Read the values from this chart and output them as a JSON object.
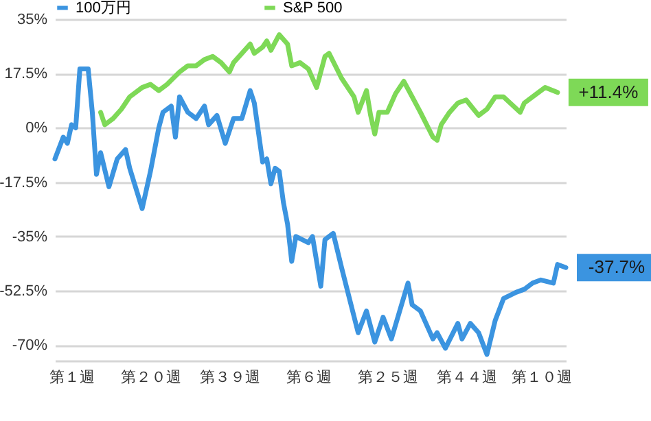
{
  "chart_data": {
    "type": "line",
    "categories": [
      null,
      null,
      null,
      null,
      "第１週",
      null,
      null,
      null,
      null,
      null,
      null,
      null,
      null,
      null,
      null,
      null,
      null,
      null,
      null,
      null,
      null,
      null,
      null,
      "第２０週",
      null,
      null,
      null,
      null,
      null,
      null,
      null,
      null,
      null,
      null,
      null,
      null,
      null,
      null,
      null,
      null,
      null,
      null,
      "第３９週",
      null,
      null,
      null,
      null,
      null,
      null,
      null,
      null,
      null,
      null,
      null,
      null,
      null,
      null,
      null,
      null,
      null,
      null,
      "第６週",
      null,
      null,
      null,
      null,
      null,
      null,
      null,
      null,
      null,
      null,
      null,
      null,
      null,
      null,
      null,
      null,
      null,
      null,
      "第２５週",
      null,
      null,
      null,
      null,
      null,
      null,
      null,
      null,
      null,
      null,
      null,
      null,
      null,
      null,
      null,
      null,
      null,
      null,
      "第４４週",
      null,
      null,
      null,
      null,
      null,
      null,
      null,
      null,
      null,
      null,
      null,
      null,
      null,
      null,
      null,
      null,
      null,
      "第１０週",
      null,
      null,
      null,
      null,
      null,
      null
    ],
    "ylim": [
      -75,
      35
    ],
    "yticks": [
      {
        "value": 35,
        "label": "35%"
      },
      {
        "value": 17.5,
        "label": "17.5%"
      },
      {
        "value": 0,
        "label": "0%"
      },
      {
        "value": -17.5,
        "label": "-17.5%"
      },
      {
        "value": -35,
        "label": "-35%"
      },
      {
        "value": -52.5,
        "label": "-52.5%"
      },
      {
        "value": -70,
        "label": "-70%"
      }
    ],
    "grid": "y",
    "legend": "top",
    "series": [
      {
        "name": "100万円",
        "color": "#3b94e0",
        "values": [
          -10,
          null,
          -3,
          -5,
          1,
          0,
          19,
          null,
          19,
          5,
          -15,
          -8,
          null,
          -19,
          null,
          -10,
          null,
          -7,
          -13,
          null,
          null,
          -26,
          -20,
          -14,
          null,
          0,
          5,
          null,
          7,
          -3,
          10,
          null,
          5,
          null,
          3,
          null,
          7,
          1,
          null,
          4,
          null,
          -5,
          null,
          3,
          null,
          3,
          null,
          12,
          8,
          null,
          -11,
          -10,
          -18,
          -13,
          -14,
          -24,
          -31,
          -43,
          -35,
          null,
          null,
          -37,
          -35,
          null,
          -51,
          -36,
          null,
          -34,
          null,
          -45,
          null,
          null,
          null,
          -66,
          null,
          -59,
          null,
          -69,
          null,
          -61,
          null,
          -68,
          null,
          -59,
          null,
          -50,
          -57,
          null,
          -59,
          null,
          null,
          -68,
          -66,
          null,
          -71,
          null,
          null,
          -63,
          -68,
          null,
          -63,
          null,
          -66,
          null,
          -73,
          null,
          -62,
          null,
          -55,
          null,
          null,
          -53,
          null,
          -52,
          null,
          -50,
          null,
          -49,
          null,
          null,
          -50,
          -44,
          null,
          -45
        ]
      },
      {
        "name": "S&P 500",
        "color": "#7ed957",
        "values": [
          null,
          null,
          null,
          null,
          null,
          null,
          null,
          null,
          null,
          null,
          null,
          5,
          1,
          null,
          3,
          null,
          6,
          null,
          10,
          null,
          null,
          13,
          null,
          14,
          null,
          12,
          null,
          14,
          null,
          null,
          18,
          null,
          20,
          null,
          20,
          null,
          22,
          null,
          23,
          null,
          21,
          null,
          18,
          21,
          null,
          24,
          null,
          27,
          24,
          null,
          26,
          28,
          25,
          null,
          30,
          null,
          27,
          20,
          null,
          21,
          null,
          19,
          null,
          13,
          null,
          23,
          24,
          null,
          null,
          16,
          null,
          null,
          10,
          5,
          null,
          12,
          4,
          -2,
          5,
          null,
          5,
          null,
          11,
          null,
          15,
          null,
          10,
          null,
          5,
          null,
          null,
          -3,
          -4,
          1,
          null,
          5,
          null,
          8,
          null,
          9,
          null,
          null,
          4,
          null,
          6,
          null,
          10,
          null,
          10,
          null,
          null,
          null,
          5,
          8,
          null,
          null,
          11,
          null,
          13,
          null,
          null,
          11.4,
          null,
          null
        ]
      }
    ],
    "annotations": [
      "-37.7%",
      "+11.4%"
    ]
  }
}
